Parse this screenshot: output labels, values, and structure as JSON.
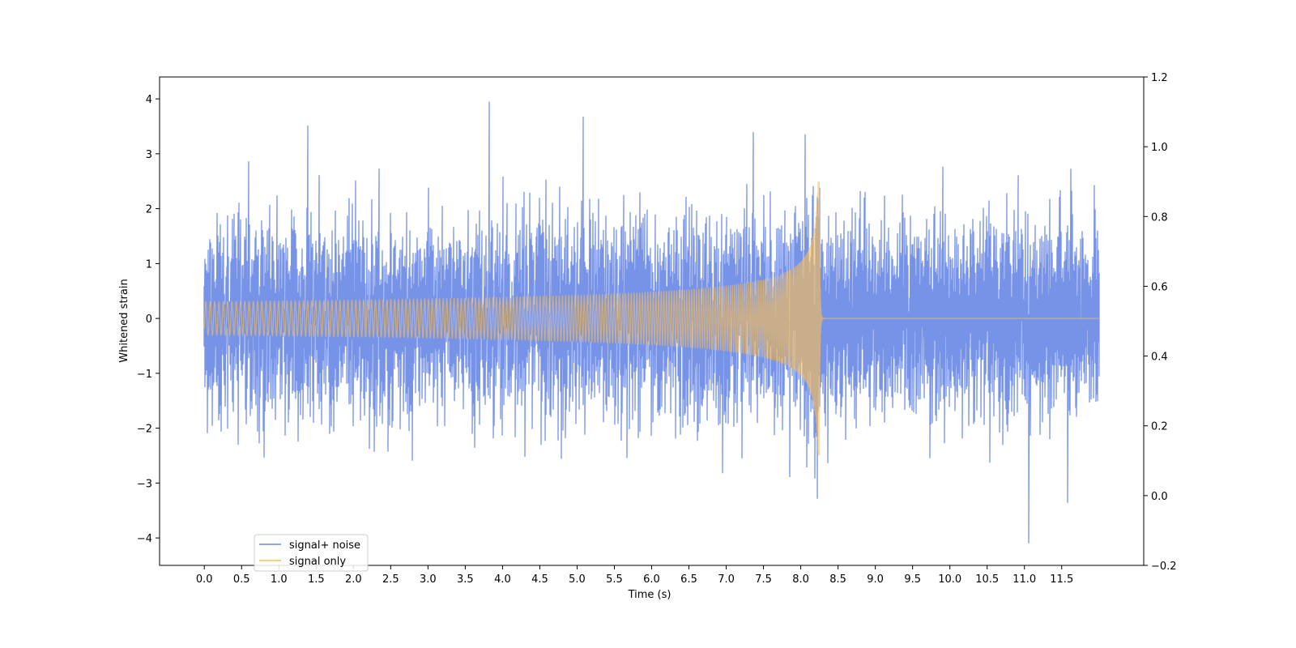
{
  "chart_data": {
    "type": "line",
    "title": "",
    "xlabel": "Time (s)",
    "ylabel": "Whitened strain",
    "y2label": "",
    "xlim": [
      -0.6,
      12.6
    ],
    "ylim": [
      -4.5,
      4.4
    ],
    "y2lim": [
      -0.2,
      1.2
    ],
    "x_ticks": [
      0.0,
      0.5,
      1.0,
      1.5,
      2.0,
      2.5,
      3.0,
      3.5,
      4.0,
      4.5,
      5.0,
      5.5,
      6.0,
      6.5,
      7.0,
      7.5,
      8.0,
      8.5,
      9.0,
      9.5,
      10.0,
      10.5,
      11.0,
      11.5
    ],
    "x_tick_labels": [
      "0.0",
      "0.5",
      "1.0",
      "1.5",
      "2.0",
      "2.5",
      "3.0",
      "3.5",
      "4.0",
      "4.5",
      "5.0",
      "5.5",
      "6.0",
      "6.5",
      "7.0",
      "7.5",
      "8.0",
      "8.5",
      "9.0",
      "9.5",
      "10.0",
      "10.5",
      "11.0",
      "11.5"
    ],
    "y_ticks": [
      -4,
      -3,
      -2,
      -1,
      0,
      1,
      2,
      3,
      4
    ],
    "y_tick_labels": [
      "−4",
      "−3",
      "−2",
      "−1",
      "0",
      "1",
      "2",
      "3",
      "4"
    ],
    "y2_ticks": [
      -0.2,
      0.0,
      0.2,
      0.4,
      0.6,
      0.8,
      1.0,
      1.2
    ],
    "y2_tick_labels": [
      "−0.2",
      "0.0",
      "0.2",
      "0.4",
      "0.6",
      "0.8",
      "1.0",
      "1.2"
    ],
    "grid": false,
    "legend": {
      "position": "lower-left"
    },
    "series": [
      {
        "name": "signal+ noise",
        "color": "#6b8ae6",
        "kind": "noise_plus_signal",
        "x_range": [
          0.0,
          12.0
        ],
        "noise_std": 1.0,
        "min": -4.1,
        "max": 3.95
      },
      {
        "name": "signal only",
        "color": "#ffc04d",
        "kind": "chirp",
        "x_range": [
          0.0,
          12.0
        ],
        "merger_time": 8.25,
        "peak_amplitude": 2.5,
        "ringdown_time": 8.28
      }
    ]
  }
}
